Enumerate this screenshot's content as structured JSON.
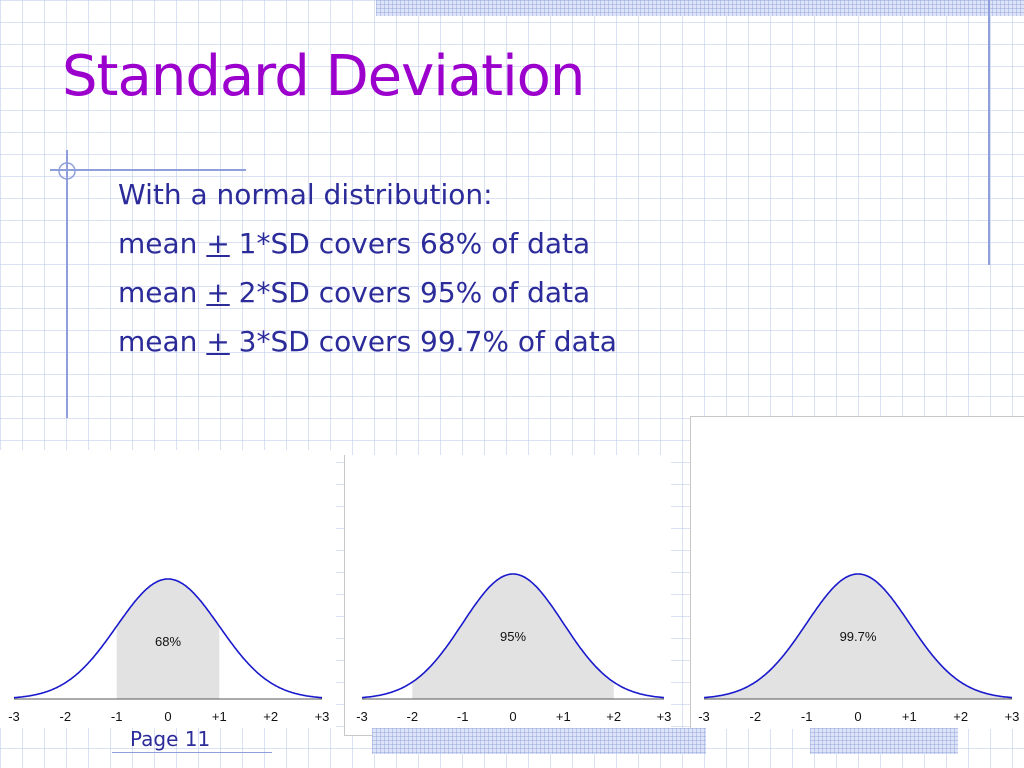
{
  "slide": {
    "title": "Standard Deviation",
    "bullets": [
      {
        "prefix": "With a normal distribution:",
        "symbol": "",
        "suffix": ""
      },
      {
        "prefix": "mean ",
        "symbol": "+",
        "suffix": " 1*SD covers 68% of data"
      },
      {
        "prefix": "mean ",
        "symbol": "+",
        "suffix": " 2*SD covers 95% of data"
      },
      {
        "prefix": "mean ",
        "symbol": "+",
        "suffix": " 3*SD covers 99.7% of data"
      }
    ],
    "footer": "Page 11"
  },
  "colors": {
    "title": "#9b00cc",
    "text": "#2b2b9a",
    "curve": "#1a1acc",
    "shade": "#e2e2e2"
  },
  "chart_data": [
    {
      "type": "area",
      "curve": "normal",
      "x_ticks": [
        "-3",
        "-2",
        "-1",
        "0",
        "+1",
        "+2",
        "+3"
      ],
      "xlim": [
        -3,
        3
      ],
      "shaded_range": [
        -1,
        1
      ],
      "label": "68%"
    },
    {
      "type": "area",
      "curve": "normal",
      "x_ticks": [
        "-3",
        "-2",
        "-1",
        "0",
        "+1",
        "+2",
        "+3"
      ],
      "xlim": [
        -3,
        3
      ],
      "shaded_range": [
        -2,
        2
      ],
      "label": "95%"
    },
    {
      "type": "area",
      "curve": "normal",
      "x_ticks": [
        "-3",
        "-2",
        "-1",
        "0",
        "+1",
        "+2",
        "+3"
      ],
      "xlim": [
        -3,
        3
      ],
      "shaded_range": [
        -3,
        3
      ],
      "label": "99.7%"
    }
  ]
}
